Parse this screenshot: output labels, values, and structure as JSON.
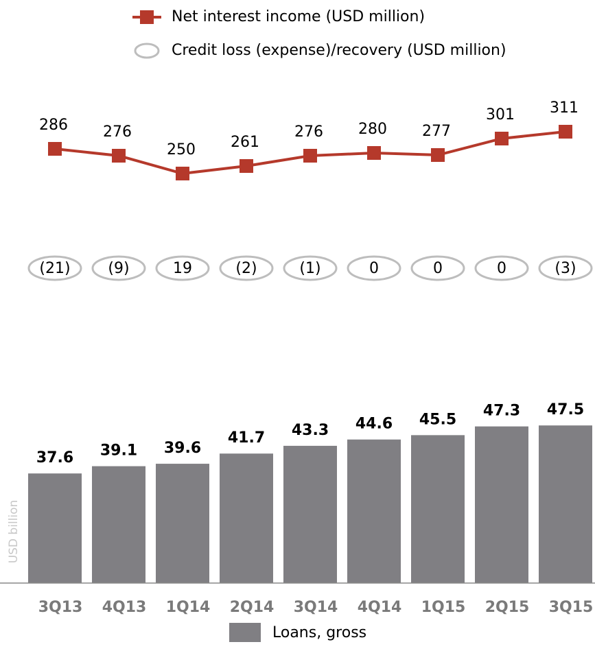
{
  "chart_data": [
    {
      "type": "line",
      "series": [
        {
          "name": "Net interest income (USD million)",
          "color": "#b5392b",
          "values": [
            286,
            276,
            250,
            261,
            276,
            280,
            277,
            301,
            311
          ]
        },
        {
          "name": "Credit loss (expense)/recovery (USD million)",
          "color": "#bdbdbd",
          "values": [
            -21,
            -9,
            19,
            -2,
            -1,
            0,
            0,
            0,
            -3
          ],
          "value_labels": [
            "(21)",
            "(9)",
            "19",
            "(2)",
            "(1)",
            "0",
            "0",
            "0",
            "(3)"
          ]
        }
      ]
    },
    {
      "type": "bar",
      "categories": [
        "3Q13",
        "4Q13",
        "1Q14",
        "2Q14",
        "3Q14",
        "4Q14",
        "1Q15",
        "2Q15",
        "3Q15"
      ],
      "series": [
        {
          "name": "Loans, gross",
          "color": "#807f83",
          "values": [
            37.6,
            39.1,
            39.6,
            41.7,
            43.3,
            44.6,
            45.5,
            47.3,
            47.5
          ]
        }
      ],
      "y_label": "USD billion",
      "ylim": [
        15,
        48
      ]
    }
  ]
}
